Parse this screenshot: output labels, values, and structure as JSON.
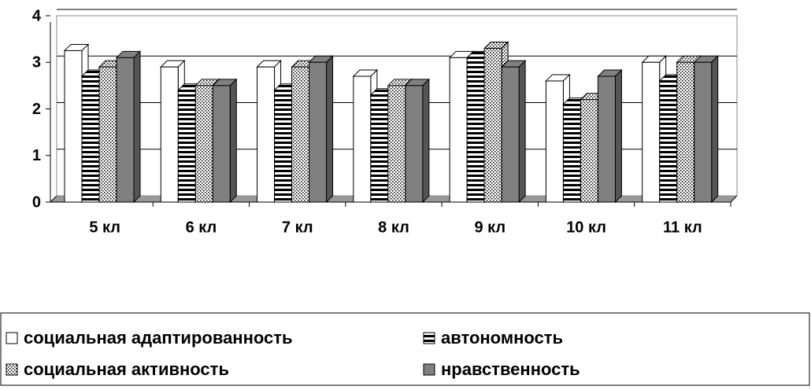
{
  "chart_data": {
    "type": "bar3d",
    "categories": [
      "5 кл",
      "6 кл",
      "7 кл",
      "8 кл",
      "9 кл",
      "10 кл",
      "11 кл"
    ],
    "series": [
      {
        "name": "социальная адаптированность",
        "color": "#ffffff",
        "pattern": "solid",
        "values": [
          3.25,
          2.9,
          2.9,
          2.7,
          3.1,
          2.6,
          3.0
        ]
      },
      {
        "name": "автономность",
        "color": "#000000",
        "pattern": "horizontal",
        "values": [
          2.7,
          2.4,
          2.4,
          2.3,
          3.1,
          2.1,
          2.6
        ]
      },
      {
        "name": "социальная активность",
        "color": "#000000",
        "pattern": "dots",
        "values": [
          2.9,
          2.5,
          2.9,
          2.5,
          3.3,
          2.2,
          3.0
        ]
      },
      {
        "name": "нравственность",
        "color": "#808080",
        "pattern": "solid",
        "values": [
          3.1,
          2.5,
          3.0,
          2.5,
          2.9,
          2.7,
          3.0
        ]
      }
    ],
    "ylim": [
      0,
      4
    ],
    "yticks": [
      0,
      1,
      2,
      3,
      4
    ],
    "grid": true,
    "legend": "bottom"
  }
}
